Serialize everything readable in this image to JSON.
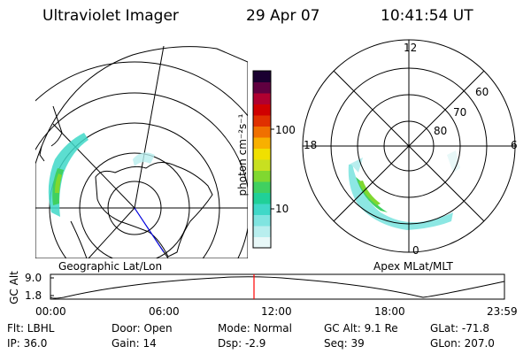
{
  "header": {
    "instrument": "Ultraviolet Imager",
    "date": "29 Apr 07",
    "time": "10:41:54 UT"
  },
  "left_panel": {
    "label": "Geographic Lat/Lon"
  },
  "right_panel": {
    "label": "Apex MLat/MLT",
    "mlt_labels": [
      "12",
      "18",
      "6",
      "0"
    ],
    "lat_labels": [
      "60",
      "70",
      "80"
    ]
  },
  "colorbar": {
    "unit_label": "photon cm⁻²s⁻¹",
    "ticks": [
      "100",
      "10"
    ],
    "colors": [
      "#e8f8f8",
      "#b8eeee",
      "#80e4e0",
      "#40d8c8",
      "#20d098",
      "#40d060",
      "#80d830",
      "#c8e020",
      "#f0e000",
      "#f8b000",
      "#f07000",
      "#e03000",
      "#d00000",
      "#b00030",
      "#600040",
      "#1a0030"
    ]
  },
  "timeline": {
    "axis_label": "GC Alt",
    "y_ticks": [
      "9.0",
      "1.8"
    ],
    "x_ticks": [
      "00:00",
      "06:00",
      "12:00",
      "18:00",
      "23:59"
    ],
    "marker_color": "#ff0000"
  },
  "info": {
    "flt": "Flt: LBHL",
    "ip": "IP: 36.0",
    "door": "Door: Open",
    "gain": "Gain: 14",
    "mode": "Mode: Normal",
    "dsp": "Dsp:    -2.9",
    "gcalt": "GC Alt: 9.1 Re",
    "seq": "Seq: 39",
    "glat": "GLat: -71.8",
    "glon": "GLon: 207.0"
  }
}
